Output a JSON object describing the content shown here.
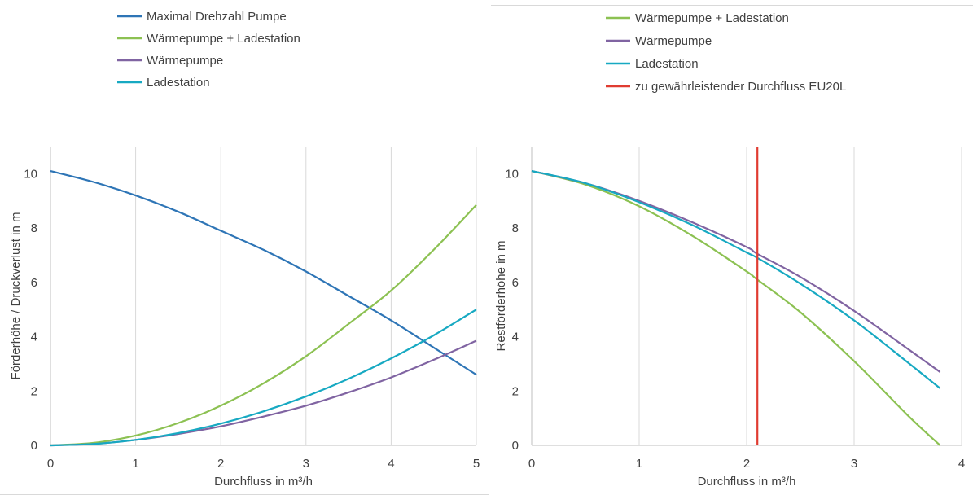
{
  "chart_data": [
    {
      "type": "line",
      "xlabel": "Durchfluss in m³/h",
      "ylabel": "Förderhöhe / Druckverlust in m",
      "xlim": [
        0,
        5
      ],
      "ylim": [
        0,
        11
      ],
      "xticks": [
        "0",
        "1",
        "2",
        "3",
        "4",
        "5"
      ],
      "yticks": [
        "0",
        "2",
        "4",
        "6",
        "8",
        "10"
      ],
      "grid": "vertical",
      "legend": "top",
      "series": [
        {
          "name": "Maximal Drehzahl Pumpe",
          "color": "#2E75B6",
          "x": [
            0,
            0.5,
            1,
            1.5,
            2,
            2.5,
            3,
            3.5,
            4,
            4.5,
            5
          ],
          "y": [
            10.1,
            9.7,
            9.2,
            8.6,
            7.9,
            7.2,
            6.4,
            5.5,
            4.6,
            3.6,
            2.6
          ]
        },
        {
          "name": "Wärmepumpe + Ladestation",
          "color": "#8CC152",
          "x": [
            0,
            0.5,
            1,
            1.5,
            2,
            2.5,
            3,
            3.5,
            4,
            4.5,
            5
          ],
          "y": [
            0,
            0.09,
            0.36,
            0.82,
            1.46,
            2.28,
            3.28,
            4.47,
            5.7,
            7.2,
            8.85
          ]
        },
        {
          "name": "Wärmepumpe",
          "color": "#8064A2",
          "x": [
            0,
            0.5,
            1,
            1.5,
            2,
            2.5,
            3,
            3.5,
            4,
            4.5,
            5
          ],
          "y": [
            0,
            0.05,
            0.2,
            0.42,
            0.7,
            1.06,
            1.46,
            1.95,
            2.5,
            3.15,
            3.85
          ]
        },
        {
          "name": "Ladestation",
          "color": "#17A9C2",
          "x": [
            0,
            0.5,
            1,
            1.5,
            2,
            2.5,
            3,
            3.5,
            4,
            4.5,
            5
          ],
          "y": [
            0,
            0.05,
            0.2,
            0.45,
            0.8,
            1.25,
            1.8,
            2.45,
            3.2,
            4.05,
            5.0
          ]
        }
      ]
    },
    {
      "type": "line",
      "xlabel": "Durchfluss in m³/h",
      "ylabel": "Restförderhöhe in m",
      "xlim": [
        0,
        4
      ],
      "ylim": [
        0,
        11
      ],
      "xticks": [
        "0",
        "1",
        "2",
        "3",
        "4"
      ],
      "yticks": [
        "0",
        "2",
        "4",
        "6",
        "8",
        "10"
      ],
      "grid": "vertical",
      "legend": "top",
      "series": [
        {
          "name": "Wärmepumpe + Ladestation",
          "color": "#8CC152",
          "x": [
            0,
            0.5,
            1,
            1.5,
            2,
            2.1,
            2.5,
            3,
            3.5,
            3.8
          ],
          "y": [
            10.1,
            9.6,
            8.8,
            7.7,
            6.4,
            6.1,
            4.9,
            3.1,
            1.1,
            0
          ]
        },
        {
          "name": "Wärmepumpe",
          "color": "#8064A2",
          "x": [
            0,
            0.5,
            1,
            1.5,
            2,
            2.1,
            2.5,
            3,
            3.5,
            3.8
          ],
          "y": [
            10.1,
            9.65,
            9.0,
            8.2,
            7.3,
            7.05,
            6.2,
            4.95,
            3.55,
            2.7
          ]
        },
        {
          "name": "Ladestation",
          "color": "#17A9C2",
          "x": [
            0,
            0.5,
            1,
            1.5,
            2,
            2.1,
            2.5,
            3,
            3.5,
            3.8
          ],
          "y": [
            10.1,
            9.65,
            8.95,
            8.1,
            7.1,
            6.9,
            5.95,
            4.6,
            3.05,
            2.1
          ]
        },
        {
          "name": "zu gewährleistender Durchfluss EU20L",
          "color": "#E03C31",
          "x": [
            2.1,
            2.1
          ],
          "y": [
            0,
            11
          ]
        }
      ]
    }
  ]
}
